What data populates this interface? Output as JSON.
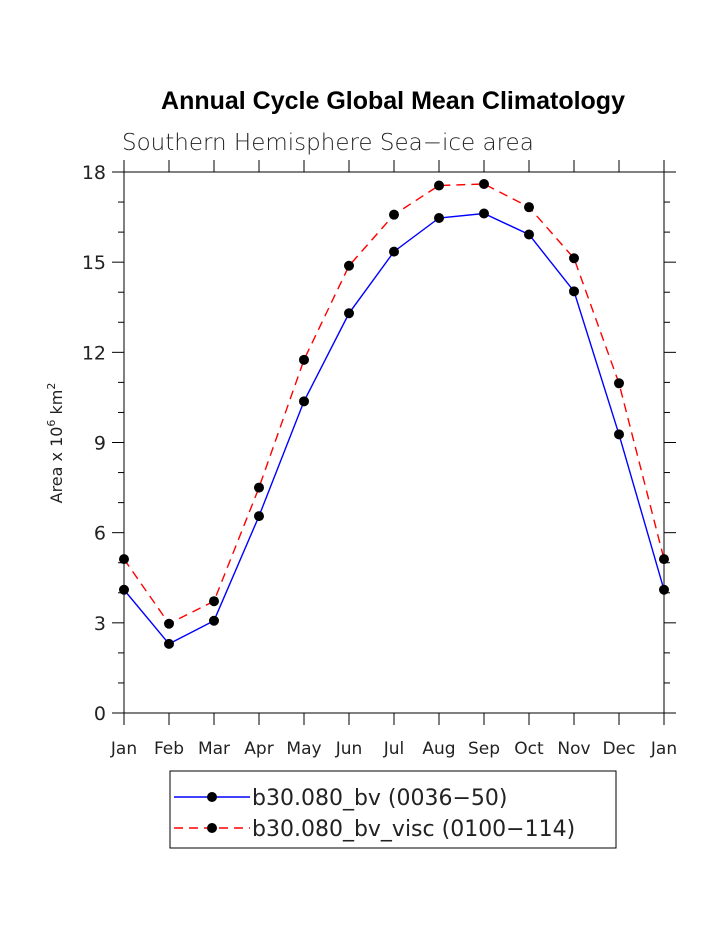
{
  "chart_data": {
    "type": "line",
    "title": "Annual Cycle Global Mean Climatology",
    "subtitle": "Southern Hemisphere Sea−ice area",
    "ylabel_main": "Area x 10",
    "ylabel_sup": "6",
    "ylabel_unit": " km",
    "ylabel_unit_sup": "2",
    "categories": [
      "Jan",
      "Feb",
      "Mar",
      "Apr",
      "May",
      "Jun",
      "Jul",
      "Aug",
      "Sep",
      "Oct",
      "Nov",
      "Dec",
      "Jan"
    ],
    "ylim": [
      0,
      18
    ],
    "yticks": [
      0,
      3,
      6,
      9,
      12,
      15,
      18
    ],
    "series": [
      {
        "name": "b30.080_bv (0036−50)",
        "color": "#0000ff",
        "dash": "solid",
        "marker": "filled-circle",
        "values": [
          4.1,
          2.3,
          3.07,
          6.55,
          10.37,
          13.3,
          15.35,
          16.47,
          16.62,
          15.92,
          14.03,
          9.27,
          4.1
        ]
      },
      {
        "name": "b30.080_bv_visc (0100−114)",
        "color": "#ff0000",
        "dash": "dashed",
        "marker": "filled-circle",
        "values": [
          5.12,
          2.97,
          3.72,
          7.5,
          11.75,
          14.88,
          16.58,
          17.55,
          17.6,
          16.83,
          15.13,
          10.97,
          5.12
        ]
      }
    ],
    "grid": false,
    "legend_position": "bottom"
  }
}
